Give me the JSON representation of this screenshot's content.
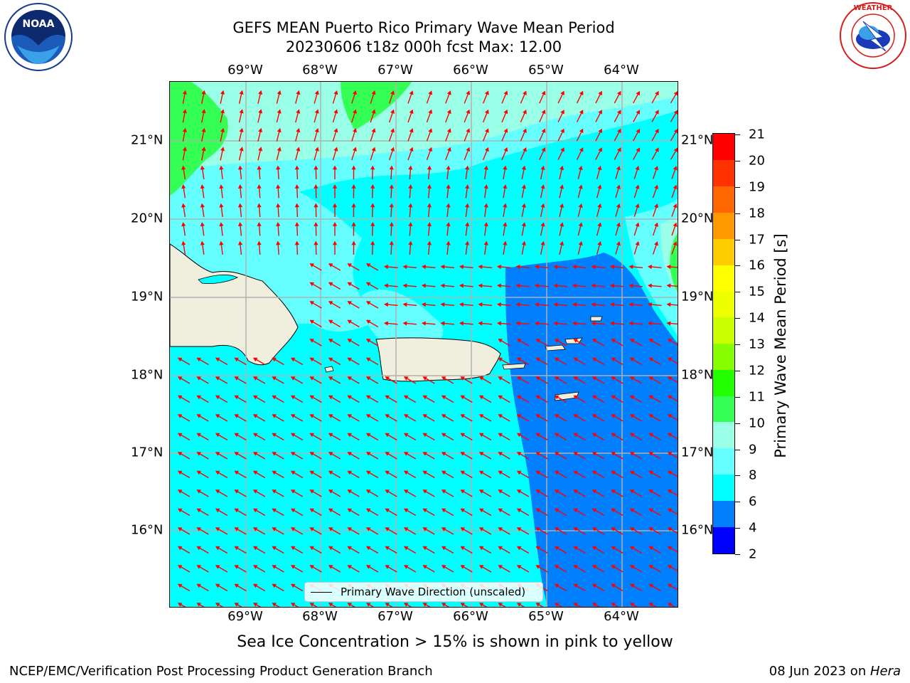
{
  "header": {
    "title": "GEFS MEAN Puerto Rico Primary Wave Mean Period",
    "subtitle": "20230606 t18z 000h fcst   Max: 12.00"
  },
  "axes": {
    "lon_labels": [
      "69°W",
      "68°W",
      "67°W",
      "66°W",
      "65°W",
      "64°W"
    ],
    "lat_labels": [
      "21°N",
      "20°N",
      "19°N",
      "18°N",
      "17°N",
      "16°N"
    ]
  },
  "legend": {
    "label": "Primary Wave Direction (unscaled)"
  },
  "colorbar": {
    "label": "Primary Wave Mean Period [s]",
    "ticks": [
      "2",
      "4",
      "6",
      "8",
      "9",
      "10",
      "11",
      "12",
      "13",
      "14",
      "15",
      "16",
      "17",
      "18",
      "19",
      "20",
      "21"
    ],
    "colors": [
      "#0000ff",
      "#0080ff",
      "#00ffff",
      "#66ffff",
      "#99ffe6",
      "#33ff55",
      "#22ff00",
      "#88ff00",
      "#ccff00",
      "#eeff00",
      "#ffff00",
      "#ffcc00",
      "#ff9900",
      "#ff6600",
      "#ff3300",
      "#ff0000"
    ]
  },
  "map_data": {
    "region": "Puerto Rico",
    "lon_range": [
      -70.0,
      -63.25
    ],
    "lat_range": [
      15.0,
      21.75
    ],
    "land_color": "#f0eedc",
    "arrow_color": "#ff0000",
    "field_colors": {
      "blue": "#0080ff",
      "cyan": "#00ffff",
      "light_cyan": "#66ffff",
      "pale": "#99ffe6",
      "green": "#33ff55"
    }
  },
  "footer": {
    "note": "Sea Ice Concentration > 15% is shown in pink to yellow",
    "org": "NCEP/EMC/Verification Post Processing Product Generation Branch",
    "date": "08 Jun 2023 on ",
    "host": "Hera"
  },
  "logos": {
    "left": "NOAA",
    "right": "NATIONAL WEATHER SERVICE"
  }
}
